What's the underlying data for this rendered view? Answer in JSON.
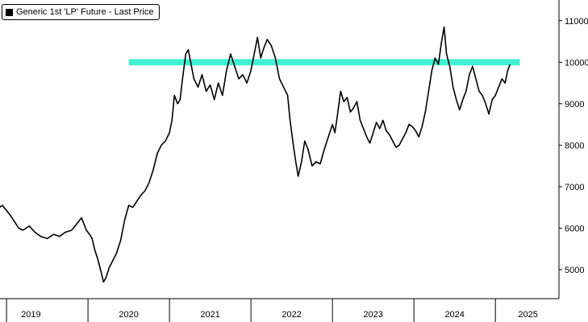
{
  "chart_data": {
    "type": "line",
    "legend": {
      "label": "Generic 1st 'LP' Future - Last Price",
      "placement": "top-left"
    },
    "series": [
      {
        "name": "Generic 1st 'LP' Future - Last Price",
        "color": "#000000",
        "points": [
          [
            2018.9,
            6480
          ],
          [
            2018.95,
            6550
          ],
          [
            2018.99,
            6450
          ],
          [
            2019.05,
            6300
          ],
          [
            2019.1,
            6150
          ],
          [
            2019.15,
            6000
          ],
          [
            2019.2,
            5950
          ],
          [
            2019.28,
            6050
          ],
          [
            2019.35,
            5900
          ],
          [
            2019.42,
            5800
          ],
          [
            2019.5,
            5750
          ],
          [
            2019.58,
            5850
          ],
          [
            2019.65,
            5800
          ],
          [
            2019.72,
            5900
          ],
          [
            2019.8,
            5950
          ],
          [
            2019.88,
            6150
          ],
          [
            2019.92,
            6250
          ],
          [
            2019.95,
            6100
          ],
          [
            2019.98,
            5950
          ],
          [
            2020.02,
            5850
          ],
          [
            2020.05,
            5750
          ],
          [
            2020.08,
            5500
          ],
          [
            2020.12,
            5250
          ],
          [
            2020.16,
            4950
          ],
          [
            2020.19,
            4700
          ],
          [
            2020.22,
            4800
          ],
          [
            2020.26,
            5050
          ],
          [
            2020.3,
            5200
          ],
          [
            2020.35,
            5400
          ],
          [
            2020.4,
            5700
          ],
          [
            2020.45,
            6200
          ],
          [
            2020.5,
            6550
          ],
          [
            2020.55,
            6500
          ],
          [
            2020.6,
            6650
          ],
          [
            2020.65,
            6800
          ],
          [
            2020.7,
            6900
          ],
          [
            2020.75,
            7100
          ],
          [
            2020.8,
            7400
          ],
          [
            2020.85,
            7800
          ],
          [
            2020.9,
            8000
          ],
          [
            2020.95,
            8100
          ],
          [
            2021.0,
            8300
          ],
          [
            2021.03,
            8600
          ],
          [
            2021.06,
            9200
          ],
          [
            2021.1,
            9000
          ],
          [
            2021.13,
            9100
          ],
          [
            2021.16,
            9600
          ],
          [
            2021.2,
            10200
          ],
          [
            2021.23,
            10300
          ],
          [
            2021.26,
            10000
          ],
          [
            2021.3,
            9600
          ],
          [
            2021.35,
            9400
          ],
          [
            2021.4,
            9700
          ],
          [
            2021.45,
            9300
          ],
          [
            2021.5,
            9450
          ],
          [
            2021.55,
            9100
          ],
          [
            2021.6,
            9500
          ],
          [
            2021.65,
            9200
          ],
          [
            2021.7,
            9800
          ],
          [
            2021.75,
            10200
          ],
          [
            2021.8,
            9900
          ],
          [
            2021.85,
            9600
          ],
          [
            2021.9,
            9700
          ],
          [
            2021.95,
            9500
          ],
          [
            2022.0,
            9800
          ],
          [
            2022.05,
            10300
          ],
          [
            2022.08,
            10600
          ],
          [
            2022.12,
            10100
          ],
          [
            2022.15,
            10300
          ],
          [
            2022.2,
            10550
          ],
          [
            2022.25,
            10400
          ],
          [
            2022.3,
            10100
          ],
          [
            2022.35,
            9600
          ],
          [
            2022.4,
            9400
          ],
          [
            2022.45,
            9200
          ],
          [
            2022.48,
            8600
          ],
          [
            2022.52,
            8000
          ],
          [
            2022.55,
            7600
          ],
          [
            2022.58,
            7250
          ],
          [
            2022.62,
            7600
          ],
          [
            2022.66,
            8100
          ],
          [
            2022.7,
            7900
          ],
          [
            2022.75,
            7500
          ],
          [
            2022.8,
            7600
          ],
          [
            2022.85,
            7550
          ],
          [
            2022.9,
            7900
          ],
          [
            2022.95,
            8200
          ],
          [
            2023.0,
            8500
          ],
          [
            2023.03,
            8300
          ],
          [
            2023.06,
            8700
          ],
          [
            2023.1,
            9300
          ],
          [
            2023.14,
            9050
          ],
          [
            2023.18,
            9150
          ],
          [
            2023.22,
            8800
          ],
          [
            2023.26,
            8900
          ],
          [
            2023.3,
            9050
          ],
          [
            2023.34,
            8600
          ],
          [
            2023.38,
            8400
          ],
          [
            2023.42,
            8200
          ],
          [
            2023.46,
            8050
          ],
          [
            2023.5,
            8300
          ],
          [
            2023.54,
            8550
          ],
          [
            2023.58,
            8400
          ],
          [
            2023.62,
            8600
          ],
          [
            2023.66,
            8350
          ],
          [
            2023.7,
            8250
          ],
          [
            2023.74,
            8100
          ],
          [
            2023.78,
            7950
          ],
          [
            2023.82,
            8000
          ],
          [
            2023.86,
            8150
          ],
          [
            2023.9,
            8300
          ],
          [
            2023.94,
            8500
          ],
          [
            2023.98,
            8450
          ],
          [
            2024.02,
            8350
          ],
          [
            2024.06,
            8200
          ],
          [
            2024.1,
            8450
          ],
          [
            2024.14,
            8800
          ],
          [
            2024.18,
            9300
          ],
          [
            2024.22,
            9800
          ],
          [
            2024.26,
            10100
          ],
          [
            2024.3,
            9950
          ],
          [
            2024.34,
            10500
          ],
          [
            2024.37,
            10850
          ],
          [
            2024.4,
            10200
          ],
          [
            2024.44,
            9900
          ],
          [
            2024.48,
            9400
          ],
          [
            2024.52,
            9100
          ],
          [
            2024.56,
            8850
          ],
          [
            2024.6,
            9100
          ],
          [
            2024.64,
            9300
          ],
          [
            2024.68,
            9700
          ],
          [
            2024.72,
            9900
          ],
          [
            2024.76,
            9600
          ],
          [
            2024.8,
            9300
          ],
          [
            2024.84,
            9200
          ],
          [
            2024.88,
            9000
          ],
          [
            2024.92,
            8750
          ],
          [
            2024.96,
            9100
          ],
          [
            2025.0,
            9200
          ],
          [
            2025.04,
            9400
          ],
          [
            2025.08,
            9600
          ],
          [
            2025.12,
            9500
          ],
          [
            2025.15,
            9800
          ],
          [
            2025.18,
            9950
          ]
        ]
      }
    ],
    "highlight_band": {
      "y_low": 9925,
      "y_high": 10075,
      "color": "#3ff0d2",
      "x_start": 2020.5,
      "x_end": 2025.3
    },
    "x_axis": {
      "range": [
        2018.92,
        2025.78
      ],
      "year_boundaries": [
        2019,
        2020,
        2021,
        2022,
        2023,
        2024,
        2025
      ],
      "tick_labels": [
        {
          "label": "2019",
          "x": 2019.3
        },
        {
          "label": "2020",
          "x": 2020.5
        },
        {
          "label": "2021",
          "x": 2021.5
        },
        {
          "label": "2022",
          "x": 2022.5
        },
        {
          "label": "2023",
          "x": 2023.5
        },
        {
          "label": "2024",
          "x": 2024.5
        },
        {
          "label": "2025",
          "x": 2025.4
        }
      ]
    },
    "y_axis": {
      "position": "right",
      "range": [
        4300,
        11500
      ],
      "ticks": [
        {
          "label": "11000",
          "value": 11000
        },
        {
          "label": "10000",
          "value": 10000
        },
        {
          "label": "9000",
          "value": 9000
        },
        {
          "label": "8000",
          "value": 8000
        },
        {
          "label": "7000",
          "value": 7000
        },
        {
          "label": "6000",
          "value": 6000
        },
        {
          "label": "5000",
          "value": 5000
        }
      ]
    },
    "grid": false
  }
}
